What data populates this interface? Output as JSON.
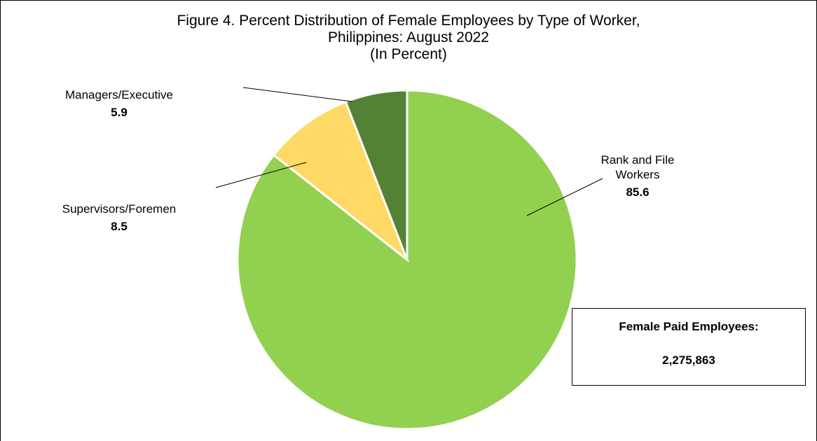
{
  "chart_data": {
    "type": "pie",
    "title": [
      "Figure 4. Percent Distribution of Female Employees by Type of Worker,",
      "Philippines: August 2022"
    ],
    "subtitle": "(In Percent)",
    "categories": [
      "Rank and File Workers",
      "Supervisors/Foremen",
      "Managers/Executive"
    ],
    "values": [
      85.6,
      8.5,
      5.9
    ],
    "colors": [
      "#92d050",
      "#ffd966",
      "#548235"
    ],
    "annotation": {
      "heading": "Female Paid Employees:",
      "value": "2,275,863"
    }
  }
}
